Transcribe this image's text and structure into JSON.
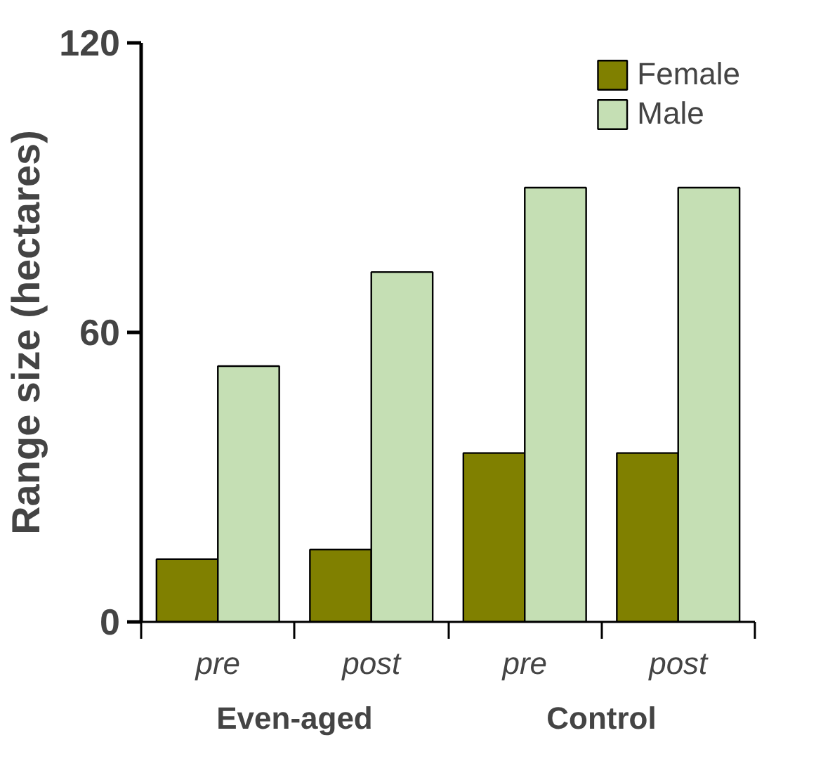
{
  "chart_data": {
    "type": "bar",
    "ylabel": "Range size (hectares)",
    "categories": [
      "pre",
      "post",
      "pre",
      "post"
    ],
    "series": [
      {
        "name": "Female",
        "color": "#808000",
        "values": [
          13,
          15,
          35,
          35
        ]
      },
      {
        "name": "Male",
        "color": "#c5dfb4",
        "values": [
          53,
          72.5,
          90,
          90
        ]
      }
    ],
    "ylim": [
      0,
      120
    ],
    "yticks": [
      0,
      60,
      120
    ],
    "grid": false,
    "legend": "top right",
    "annotations": [
      "Even-aged",
      "Control"
    ]
  }
}
